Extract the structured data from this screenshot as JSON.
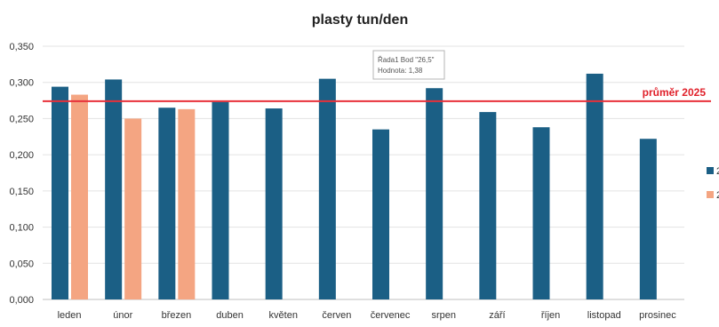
{
  "chart_data": {
    "type": "bar",
    "title": "plasty  tun/den",
    "ylim": [
      0,
      0.35
    ],
    "yticks": [
      "0,000",
      "0,050",
      "0,100",
      "0,150",
      "0,200",
      "0,250",
      "0,300",
      "0,350"
    ],
    "categories": [
      "leden",
      "únor",
      "březen",
      "duben",
      "květen",
      "červen",
      "červenec",
      "srpen",
      "září",
      "říjen",
      "listopad",
      "prosinec"
    ],
    "series": [
      {
        "name": "2",
        "color": "#1b5f85",
        "values": [
          0.294,
          0.304,
          0.265,
          0.273,
          0.264,
          0.305,
          0.235,
          0.292,
          0.259,
          0.238,
          0.312,
          0.222
        ]
      },
      {
        "name": "2",
        "color": "#f4a582",
        "values": [
          0.283,
          0.25,
          0.263,
          null,
          null,
          null,
          null,
          null,
          null,
          null,
          null,
          null
        ]
      }
    ],
    "reference_line": {
      "label": "průměr 2025",
      "value": 0.274,
      "color": "#e8303a"
    },
    "tooltip": {
      "line1": "Řada1 Bod \"26,5\"",
      "line2": "Hodnota: 1,38"
    },
    "grid": true,
    "legend": "right"
  }
}
